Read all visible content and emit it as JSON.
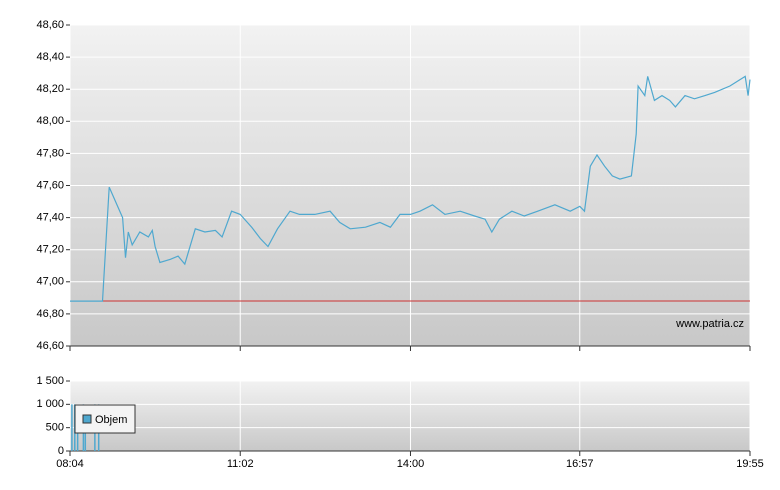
{
  "chart_data": [
    {
      "type": "line",
      "x": [
        "08:04",
        "08:38",
        "08:45",
        "08:59",
        "09:02",
        "09:05",
        "09:09",
        "09:17",
        "09:26",
        "09:30",
        "09:33",
        "09:38",
        "09:49",
        "09:57",
        "10:04",
        "10:15",
        "10:25",
        "10:36",
        "10:43",
        "10:53",
        "11:02",
        "11:14",
        "11:23",
        "11:31",
        "11:41",
        "11:54",
        "12:04",
        "12:20",
        "12:36",
        "12:46",
        "12:57",
        "13:13",
        "13:28",
        "13:39",
        "13:49",
        "14:00",
        "14:10",
        "14:23",
        "14:36",
        "14:52",
        "15:07",
        "15:18",
        "15:25",
        "15:33",
        "15:46",
        "15:59",
        "16:13",
        "16:31",
        "16:47",
        "16:57",
        "17:02",
        "17:08",
        "17:15",
        "17:23",
        "17:31",
        "17:39",
        "17:51",
        "17:56",
        "17:58",
        "18:05",
        "18:08",
        "18:15",
        "18:23",
        "18:31",
        "18:37",
        "18:47",
        "18:57",
        "19:08",
        "19:18",
        "19:34",
        "19:50",
        "19:53",
        "19:55"
      ],
      "values": [
        46.88,
        46.88,
        47.59,
        47.4,
        47.15,
        47.31,
        47.23,
        47.31,
        47.28,
        47.32,
        47.22,
        47.12,
        47.14,
        47.16,
        47.11,
        47.33,
        47.31,
        47.32,
        47.28,
        47.44,
        47.42,
        47.34,
        47.27,
        47.22,
        47.33,
        47.44,
        47.42,
        47.42,
        47.44,
        47.37,
        47.33,
        47.34,
        47.37,
        47.34,
        47.42,
        47.42,
        47.44,
        47.48,
        47.42,
        47.44,
        47.41,
        47.39,
        47.31,
        47.39,
        47.44,
        47.41,
        47.44,
        47.48,
        47.44,
        47.47,
        47.44,
        47.72,
        47.79,
        47.72,
        47.66,
        47.64,
        47.66,
        47.92,
        48.22,
        48.16,
        48.28,
        48.13,
        48.16,
        48.13,
        48.09,
        48.16,
        48.14,
        48.16,
        48.18,
        48.22,
        48.28,
        48.16,
        48.26
      ],
      "color": "#4fa8cf",
      "reference_line": {
        "value": 46.88,
        "color": "#cc3333"
      },
      "watermark": "www.patria.cz",
      "ylim": [
        46.6,
        48.6
      ],
      "yticks": [
        {
          "value": 46.6,
          "label": "46,60"
        },
        {
          "value": 46.8,
          "label": "46,80"
        },
        {
          "value": 47.0,
          "label": "47,00"
        },
        {
          "value": 47.2,
          "label": "47,20"
        },
        {
          "value": 47.4,
          "label": "47,40"
        },
        {
          "value": 47.6,
          "label": "47,60"
        },
        {
          "value": 47.8,
          "label": "47,80"
        },
        {
          "value": 48.0,
          "label": "48,00"
        },
        {
          "value": 48.2,
          "label": "48,20"
        },
        {
          "value": 48.4,
          "label": "48,40"
        },
        {
          "value": 48.6,
          "label": "48,60"
        }
      ],
      "grid": true
    },
    {
      "type": "bar",
      "x": [
        "08:06",
        "08:09",
        "08:12",
        "08:18",
        "08:20",
        "08:30",
        "08:34"
      ],
      "series": [
        {
          "name": "Objem",
          "color": "#4fa8cf",
          "values": [
            1000,
            1000,
            900,
            1000,
            800,
            1000,
            1000
          ]
        }
      ],
      "legend": "upper-left",
      "xlim": [
        "08:04",
        "19:55"
      ],
      "xticks": [
        "08:04",
        "11:02",
        "14:00",
        "16:57",
        "19:55"
      ],
      "ylim": [
        0,
        1500
      ],
      "yticks": [
        0,
        500,
        {
          "value": 1000,
          "label": "1 000"
        },
        {
          "value": 1500,
          "label": "1 500"
        }
      ],
      "grid": true
    }
  ]
}
